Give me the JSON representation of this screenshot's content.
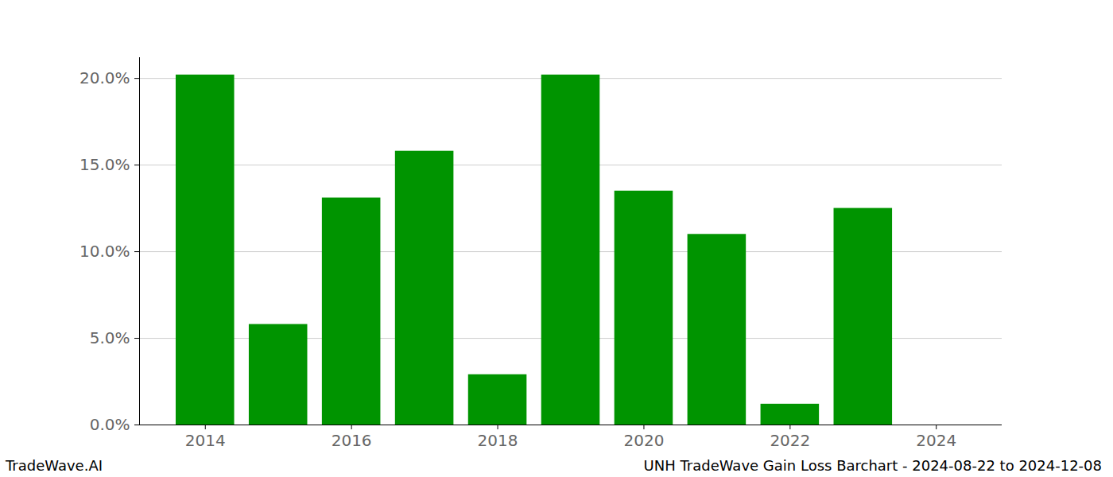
{
  "chart_data": {
    "type": "bar",
    "title": "UNH TradeWave Gain Loss Barchart - 2024-08-22 to 2024-12-08",
    "annotations": [
      "TradeWave.AI"
    ],
    "x": [
      2014,
      2015,
      2016,
      2017,
      2018,
      2019,
      2020,
      2021,
      2022,
      2023,
      2024
    ],
    "values": [
      20.2,
      5.8,
      13.1,
      15.8,
      2.9,
      20.2,
      13.5,
      11.0,
      1.2,
      12.5,
      0
    ],
    "color": "#009400",
    "xlim": [
      2013.1,
      2024.9
    ],
    "xticks": [
      2014,
      2016,
      2018,
      2020,
      2022,
      2024
    ],
    "ylim": [
      0,
      21.2
    ],
    "yticks": [
      {
        "value": 0,
        "label": "0.0%"
      },
      {
        "value": 5,
        "label": "5.0%"
      },
      {
        "value": 10,
        "label": "10.0%"
      },
      {
        "value": 15,
        "label": "15.0%"
      },
      {
        "value": 20,
        "label": "20.0%"
      }
    ],
    "grid": true
  }
}
